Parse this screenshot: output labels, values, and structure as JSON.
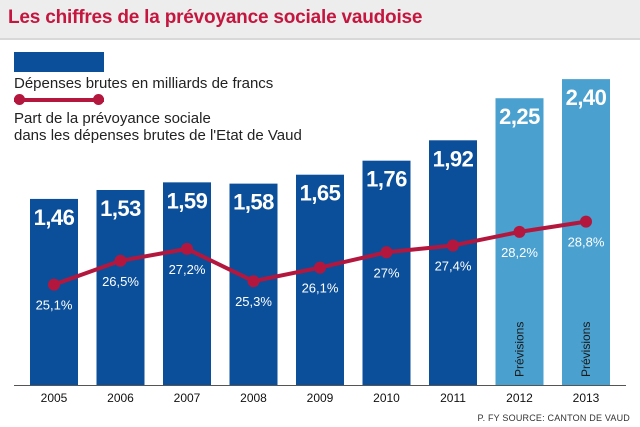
{
  "header": {
    "title": "Les chiffres de la prévoyance sociale vaudoise"
  },
  "legend": {
    "bars_label": "Dépenses brutes en milliards de francs",
    "line_label_1": "Part de la prévoyance sociale",
    "line_label_2": "dans les dépenses brutes de l'Etat de Vaud"
  },
  "colors": {
    "actual_bar": "#0b4f9a",
    "forecast_bar": "#4aa0cf",
    "line": "#b4173e",
    "title": "#c4163f"
  },
  "chart_data": {
    "type": "bar",
    "title": "Les chiffres de la prévoyance sociale vaudoise",
    "categories": [
      "2005",
      "2006",
      "2007",
      "2008",
      "2009",
      "2010",
      "2011",
      "2012",
      "2013"
    ],
    "series": [
      {
        "name": "Dépenses brutes en milliards de francs",
        "type": "bar",
        "values": [
          1.46,
          1.53,
          1.59,
          1.58,
          1.65,
          1.76,
          1.92,
          2.25,
          2.4
        ],
        "labels": [
          "1,46",
          "1,53",
          "1,59",
          "1,58",
          "1,65",
          "1,76",
          "1,92",
          "2,25",
          "2,40"
        ],
        "forecast": [
          false,
          false,
          false,
          false,
          false,
          false,
          false,
          true,
          true
        ]
      },
      {
        "name": "Part de la prévoyance sociale dans les dépenses brutes de l'Etat de Vaud",
        "type": "line",
        "values": [
          25.1,
          26.5,
          27.2,
          25.3,
          26.1,
          27.0,
          27.4,
          28.2,
          28.8
        ],
        "labels": [
          "25,1%",
          "26,5%",
          "27,2%",
          "25,3%",
          "26,1%",
          "27%",
          "27,4%",
          "28,2%",
          "28,8%"
        ]
      }
    ],
    "forecast_label": "Prévisions",
    "bar_ylim": [
      0,
      2.55
    ],
    "line_ylim": [
      19.2,
      38.3
    ],
    "grid": false,
    "legend_position": "top-left"
  },
  "source": "P. FY SOURCE: CANTON DE VAUD"
}
